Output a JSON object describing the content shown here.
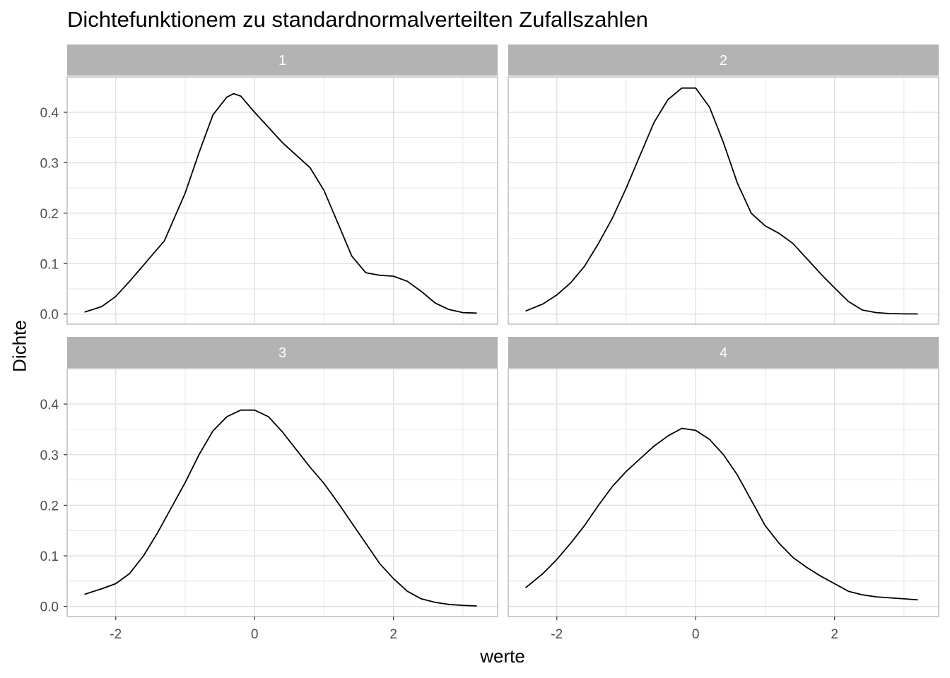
{
  "chart_data": {
    "type": "line",
    "title": "Dichtefunktionem zu standardnormalverteilten Zufallszahlen",
    "xlabel": "werte",
    "ylabel": "Dichte",
    "xlim": [
      -2.7,
      3.5
    ],
    "ylim": [
      -0.02,
      0.47
    ],
    "x_ticks": [
      -2,
      0,
      2
    ],
    "y_ticks": [
      0.0,
      0.1,
      0.2,
      0.3,
      0.4
    ],
    "x_tick_labels": [
      "-2",
      "0",
      "2"
    ],
    "y_tick_labels": [
      "0.0",
      "0.1",
      "0.2",
      "0.3",
      "0.4"
    ],
    "grid": true,
    "legend": "none",
    "line_color": "#000000",
    "strip_color": "#b3b3b3",
    "grid_color": "#dedede",
    "panels": [
      {
        "label": "1",
        "x": [
          -2.45,
          -2.2,
          -2.0,
          -1.8,
          -1.6,
          -1.3,
          -1.0,
          -0.8,
          -0.6,
          -0.4,
          -0.3,
          -0.2,
          0.0,
          0.2,
          0.4,
          0.6,
          0.8,
          1.0,
          1.2,
          1.4,
          1.6,
          1.8,
          2.0,
          2.2,
          2.4,
          2.6,
          2.8,
          3.0,
          3.2
        ],
        "y": [
          0.004,
          0.015,
          0.035,
          0.065,
          0.097,
          0.145,
          0.24,
          0.32,
          0.395,
          0.43,
          0.437,
          0.432,
          0.4,
          0.37,
          0.34,
          0.315,
          0.29,
          0.245,
          0.18,
          0.115,
          0.082,
          0.077,
          0.075,
          0.065,
          0.045,
          0.022,
          0.009,
          0.003,
          0.002
        ]
      },
      {
        "label": "2",
        "x": [
          -2.45,
          -2.2,
          -2.0,
          -1.8,
          -1.6,
          -1.4,
          -1.2,
          -1.0,
          -0.8,
          -0.6,
          -0.4,
          -0.2,
          0.0,
          0.2,
          0.4,
          0.6,
          0.8,
          1.0,
          1.2,
          1.4,
          1.6,
          1.8,
          2.0,
          2.2,
          2.4,
          2.6,
          2.8,
          3.0,
          3.2
        ],
        "y": [
          0.006,
          0.02,
          0.038,
          0.062,
          0.095,
          0.14,
          0.19,
          0.25,
          0.315,
          0.38,
          0.425,
          0.448,
          0.448,
          0.41,
          0.34,
          0.26,
          0.2,
          0.175,
          0.16,
          0.14,
          0.11,
          0.08,
          0.052,
          0.025,
          0.008,
          0.003,
          0.001,
          0.0005,
          0.0003
        ]
      },
      {
        "label": "3",
        "x": [
          -2.45,
          -2.2,
          -2.0,
          -1.8,
          -1.6,
          -1.4,
          -1.2,
          -1.0,
          -0.8,
          -0.6,
          -0.4,
          -0.2,
          0.0,
          0.2,
          0.4,
          0.6,
          0.8,
          1.0,
          1.2,
          1.4,
          1.6,
          1.8,
          2.0,
          2.2,
          2.4,
          2.6,
          2.8,
          3.0,
          3.2
        ],
        "y": [
          0.024,
          0.035,
          0.045,
          0.065,
          0.1,
          0.145,
          0.195,
          0.245,
          0.3,
          0.347,
          0.375,
          0.388,
          0.388,
          0.375,
          0.345,
          0.31,
          0.275,
          0.243,
          0.205,
          0.165,
          0.125,
          0.085,
          0.055,
          0.03,
          0.015,
          0.008,
          0.004,
          0.002,
          0.001
        ]
      },
      {
        "label": "4",
        "x": [
          -2.45,
          -2.2,
          -2.0,
          -1.8,
          -1.6,
          -1.4,
          -1.2,
          -1.0,
          -0.8,
          -0.6,
          -0.4,
          -0.2,
          0.0,
          0.2,
          0.4,
          0.6,
          0.8,
          1.0,
          1.2,
          1.4,
          1.6,
          1.8,
          2.0,
          2.2,
          2.4,
          2.6,
          2.8,
          3.0,
          3.2
        ],
        "y": [
          0.037,
          0.065,
          0.093,
          0.125,
          0.16,
          0.2,
          0.237,
          0.267,
          0.292,
          0.317,
          0.337,
          0.352,
          0.348,
          0.33,
          0.3,
          0.26,
          0.21,
          0.16,
          0.125,
          0.097,
          0.077,
          0.06,
          0.045,
          0.03,
          0.023,
          0.019,
          0.017,
          0.015,
          0.013
        ]
      }
    ]
  }
}
